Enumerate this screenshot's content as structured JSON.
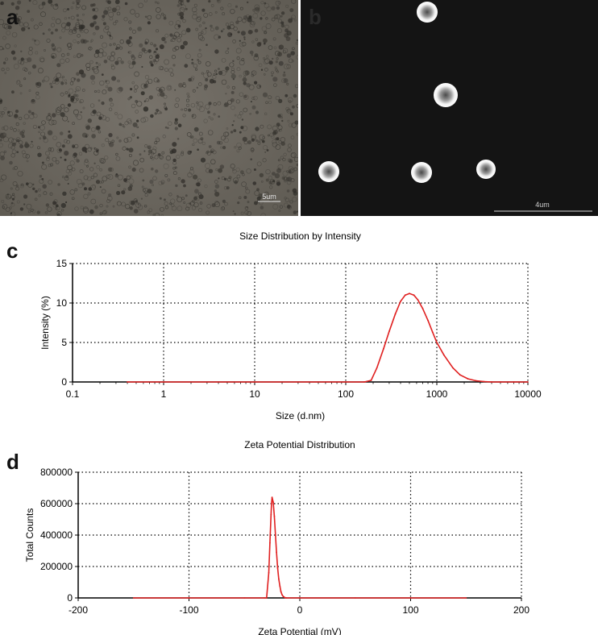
{
  "panels": {
    "a": {
      "letter": "a",
      "scale_bar": "5um"
    },
    "b": {
      "letter": "b",
      "scale_bar": "4um"
    },
    "c": {
      "letter": "c"
    },
    "d": {
      "letter": "d"
    }
  },
  "colors": {
    "curve": "#e02020",
    "grid": "#000000",
    "sem_bg": "#141414",
    "optical_bg": "#6b675e"
  },
  "chart_data": [
    {
      "id": "c",
      "type": "line",
      "title": "Size Distribution by Intensity",
      "xlabel": "Size (d.nm)",
      "ylabel": "Intensity (%)",
      "xscale": "log",
      "xlim": [
        0.1,
        10000
      ],
      "ylim": [
        0,
        15
      ],
      "xticks": [
        0.1,
        1,
        10,
        100,
        1000,
        10000
      ],
      "xtick_labels": [
        "0.1",
        "1",
        "10",
        "100",
        "1000",
        "10000"
      ],
      "yticks": [
        0,
        5,
        10,
        15
      ],
      "ytick_labels": [
        "0",
        "5",
        "10",
        "15"
      ],
      "grid": true,
      "series": [
        {
          "x": [
            0.4,
            1,
            10,
            100,
            160,
            190,
            220,
            260,
            300,
            350,
            400,
            450,
            500,
            560,
            620,
            700,
            800,
            900,
            1000,
            1200,
            1500,
            1800,
            2200,
            2700,
            3300,
            4000,
            5000,
            7000,
            10000
          ],
          "y": [
            0,
            0,
            0,
            0,
            0,
            0.2,
            1.8,
            4.2,
            6.4,
            8.6,
            10.2,
            11.0,
            11.2,
            11.0,
            10.4,
            9.3,
            7.8,
            6.3,
            5.0,
            3.4,
            1.8,
            0.9,
            0.4,
            0.15,
            0.05,
            0,
            0,
            0,
            0
          ]
        }
      ]
    },
    {
      "id": "d",
      "type": "line",
      "title": "Zeta Potential Distribution",
      "xlabel": "Zeta Potential (mV)",
      "ylabel": "Total Counts",
      "xlim": [
        -200,
        200
      ],
      "ylim": [
        0,
        800000
      ],
      "xticks": [
        -200,
        -100,
        0,
        100,
        200
      ],
      "xtick_labels": [
        "-200",
        "-100",
        "0",
        "100",
        "200"
      ],
      "yticks": [
        0,
        200000,
        400000,
        600000,
        800000
      ],
      "ytick_labels": [
        "0",
        "200000",
        "400000",
        "600000",
        "800000"
      ],
      "grid": true,
      "series": [
        {
          "x": [
            -150,
            -100,
            -50,
            -32,
            -30,
            -28,
            -27,
            -26,
            -25.5,
            -25,
            -24,
            -23,
            -22,
            -21,
            -20,
            -19,
            -18,
            -17,
            -16,
            -15,
            -14,
            -13,
            -12,
            0,
            50,
            100,
            150
          ],
          "y": [
            0,
            0,
            0,
            0,
            0,
            160000,
            350000,
            530000,
            600000,
            640000,
            610000,
            520000,
            400000,
            290000,
            190000,
            120000,
            75000,
            40000,
            20000,
            10000,
            4000,
            1000,
            0,
            0,
            0,
            0,
            0
          ]
        }
      ]
    }
  ]
}
